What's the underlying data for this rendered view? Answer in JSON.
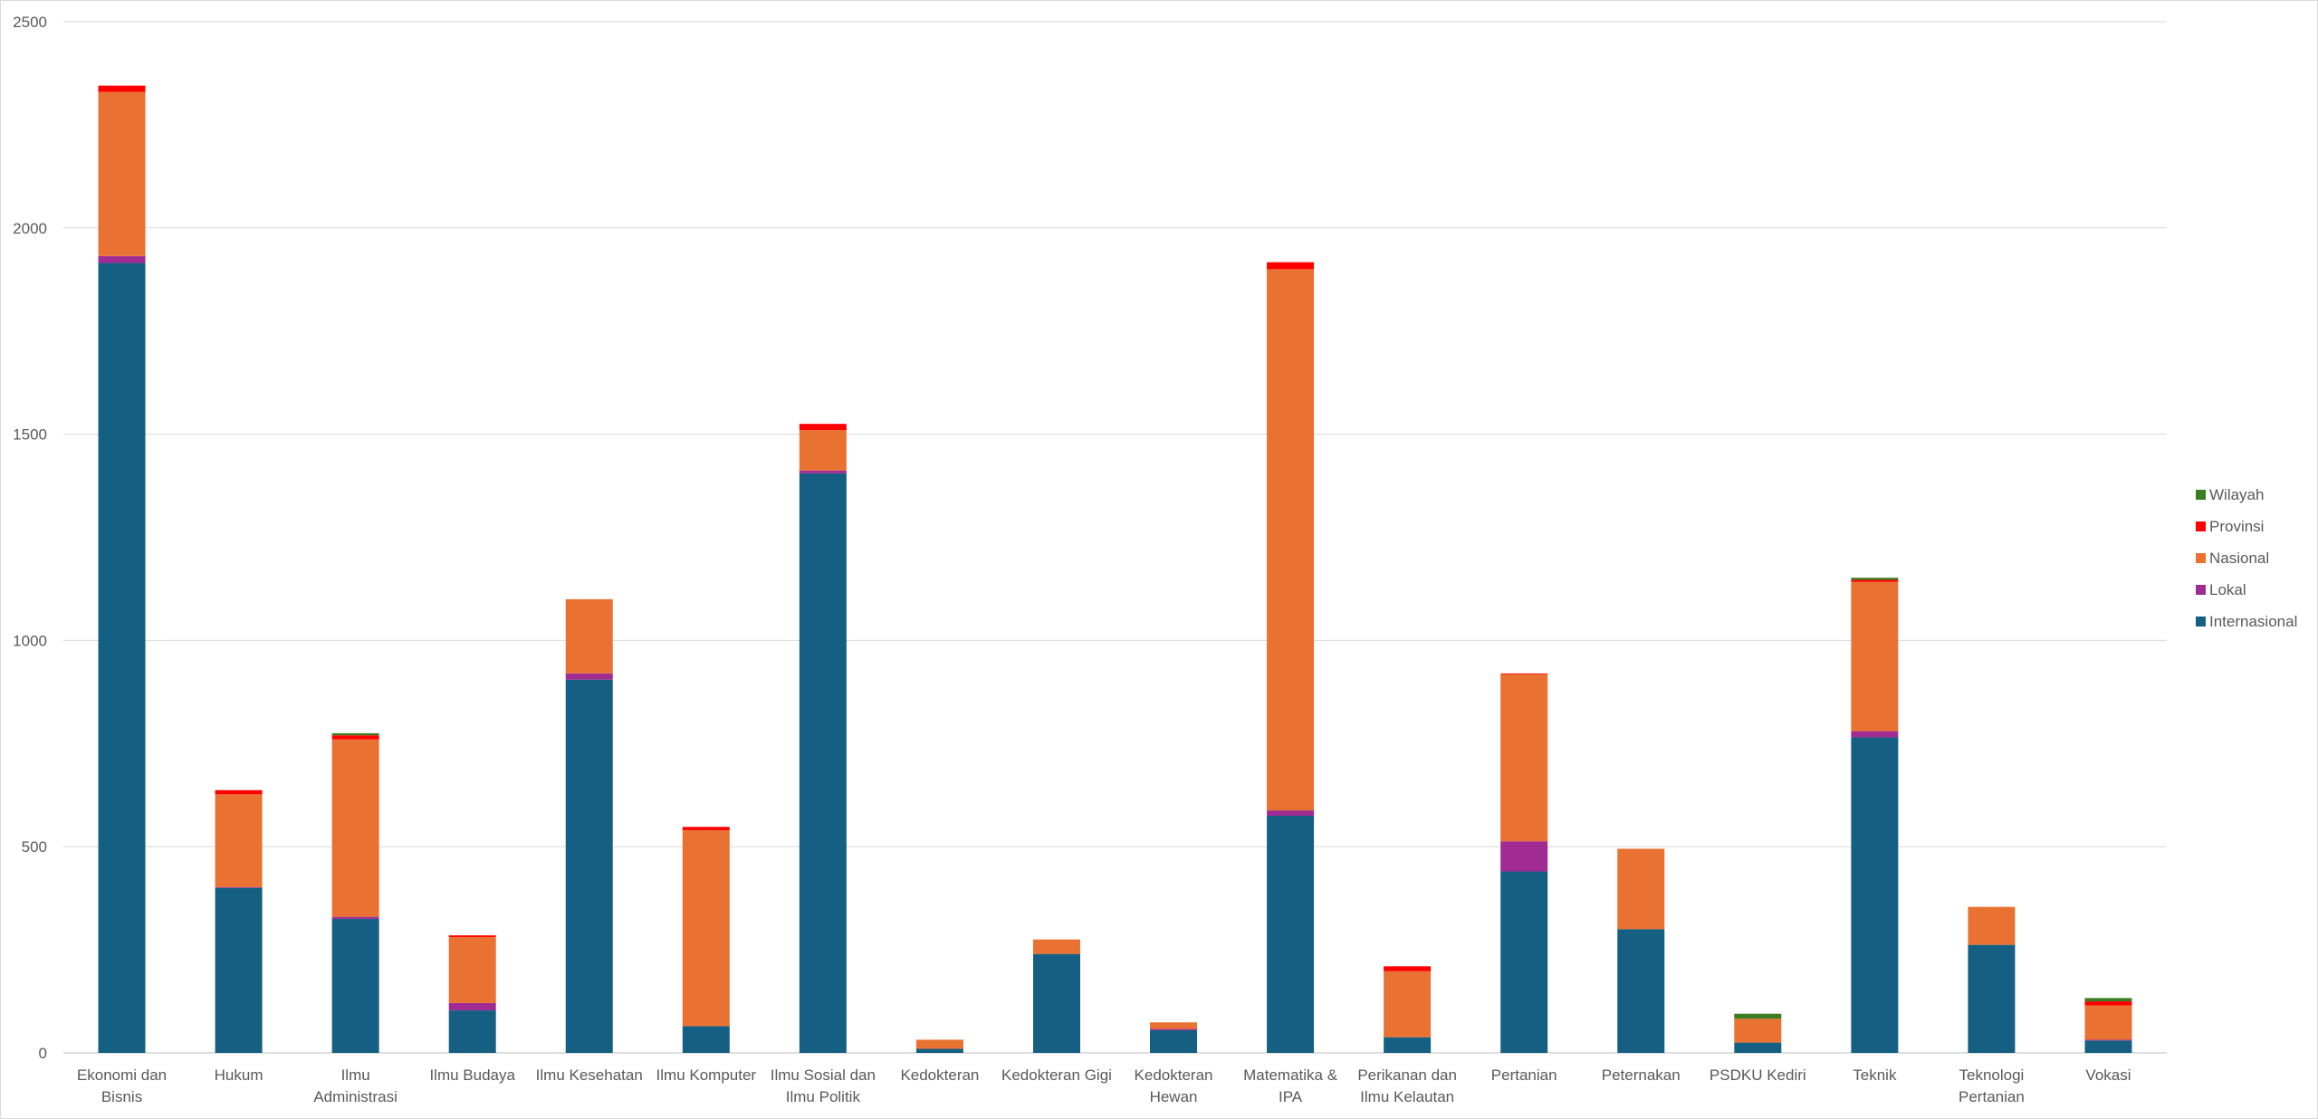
{
  "chart_data": {
    "type": "bar",
    "stacked": true,
    "ylim": [
      0,
      2500
    ],
    "yticks": [
      0,
      500,
      1000,
      1500,
      2000,
      2500
    ],
    "grid": true,
    "legend_position": "right",
    "categories": [
      [
        "Ekonomi dan",
        "Bisnis"
      ],
      [
        "Hukum"
      ],
      [
        "Ilmu",
        "Administrasi"
      ],
      [
        "Ilmu Budaya"
      ],
      [
        "Ilmu Kesehatan"
      ],
      [
        "Ilmu Komputer"
      ],
      [
        "Ilmu Sosial dan",
        "Ilmu Politik"
      ],
      [
        "Kedokteran"
      ],
      [
        "Kedokteran Gigi"
      ],
      [
        "Kedokteran",
        "Hewan"
      ],
      [
        "Matematika &",
        "IPA"
      ],
      [
        "Perikanan dan",
        "Ilmu Kelautan"
      ],
      [
        "Pertanian"
      ],
      [
        "Peternakan"
      ],
      [
        "PSDKU Kediri"
      ],
      [
        "Teknik"
      ],
      [
        "Teknologi",
        "Pertanian"
      ],
      [
        "Vokasi"
      ]
    ],
    "series": [
      {
        "name": "Internasional",
        "color": "#156082",
        "values": [
          1915,
          400,
          325,
          103,
          905,
          65,
          1405,
          10,
          240,
          55,
          575,
          38,
          440,
          300,
          25,
          765,
          262,
          30
        ]
      },
      {
        "name": "Lokal",
        "color": "#A02B93",
        "values": [
          17,
          2,
          5,
          18,
          15,
          0,
          7,
          0,
          0,
          3,
          13,
          0,
          73,
          0,
          0,
          15,
          0,
          2
        ]
      },
      {
        "name": "Nasional",
        "color": "#E97132",
        "values": [
          398,
          225,
          430,
          160,
          180,
          475,
          98,
          22,
          35,
          16,
          1312,
          160,
          405,
          195,
          58,
          362,
          92,
          83
        ]
      },
      {
        "name": "Provinsi",
        "color": "#FF0000",
        "values": [
          15,
          10,
          10,
          4,
          0,
          8,
          15,
          0,
          0,
          0,
          17,
          12,
          2,
          0,
          0,
          5,
          0,
          10
        ]
      },
      {
        "name": "Wilayah",
        "color": "#3B7D23",
        "values": [
          0,
          0,
          5,
          0,
          0,
          0,
          0,
          0,
          0,
          0,
          0,
          0,
          0,
          0,
          12,
          5,
          0,
          8
        ]
      }
    ],
    "legend_order": [
      "Wilayah",
      "Provinsi",
      "Nasional",
      "Lokal",
      "Internasional"
    ]
  }
}
